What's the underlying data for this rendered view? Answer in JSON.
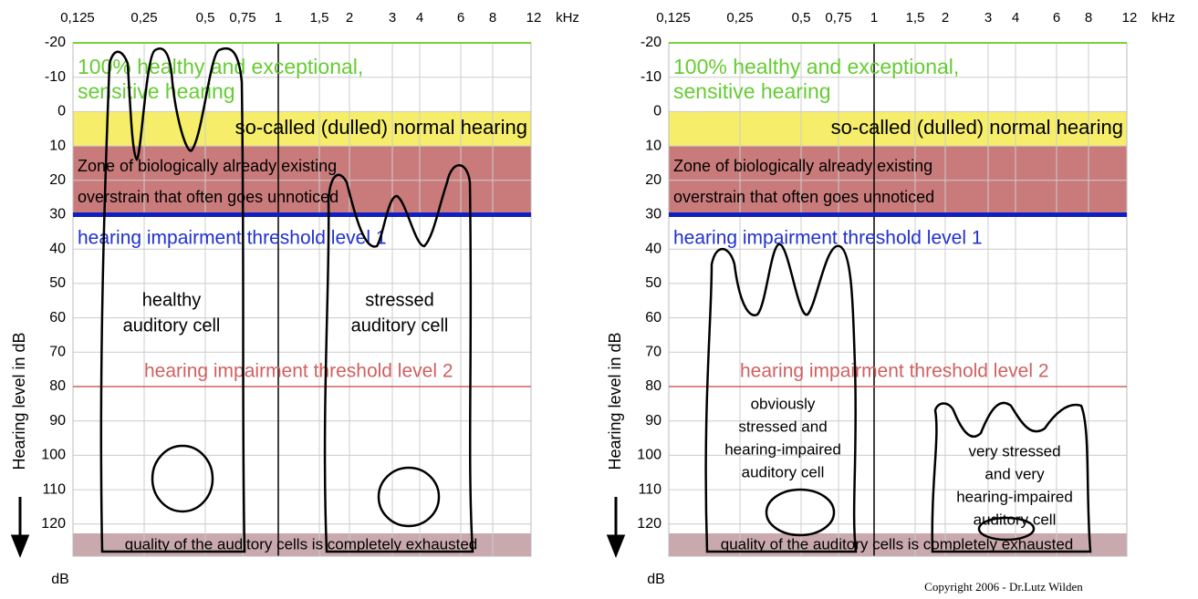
{
  "panels": [
    {
      "x_labels": [
        "0,125",
        "0,25",
        "0,5",
        "0,75",
        "1",
        "1,5",
        "2",
        "3",
        "4",
        "6",
        "8",
        "12"
      ],
      "x_unit": "kHz",
      "y_labels": [
        -20,
        -10,
        0,
        10,
        20,
        30,
        40,
        50,
        60,
        70,
        80,
        90,
        100,
        110,
        120
      ],
      "y_axis_title": "Hearing level in dB",
      "y_unit": "dB",
      "zones": {
        "healthy": [
          "100% healthy and exceptional,",
          "sensitive hearing"
        ],
        "normal": "so-called (dulled) normal hearing",
        "overstrain": [
          "Zone of biologically already existing",
          "overstrain that often goes unnoticed"
        ],
        "level1": "hearing impairment threshold level 1",
        "level2": "hearing impairment threshold level 2",
        "exhausted": "quality of the auditory cells is completely exhausted"
      },
      "cells": [
        {
          "label": [
            "healthy",
            "auditory cell"
          ]
        },
        {
          "label": [
            "stressed",
            "auditory cell"
          ]
        }
      ]
    },
    {
      "x_labels": [
        "0,125",
        "0,25",
        "0,5",
        "0,75",
        "1",
        "1,5",
        "2",
        "3",
        "4",
        "6",
        "8",
        "12"
      ],
      "x_unit": "kHz",
      "y_labels": [
        -20,
        -10,
        0,
        10,
        20,
        30,
        40,
        50,
        60,
        70,
        80,
        90,
        100,
        110,
        120
      ],
      "y_axis_title": "Hearing level in dB",
      "y_unit": "dB",
      "zones": {
        "healthy": [
          "100% healthy and exceptional,",
          "sensitive hearing"
        ],
        "normal": "so-called (dulled) normal hearing",
        "overstrain": [
          "Zone of biologically already existing",
          "overstrain that often goes unnoticed"
        ],
        "level1": "hearing impairment threshold level 1",
        "level2": "hearing impairment threshold level 2",
        "exhausted": "quality of the auditory cells is completely exhausted"
      },
      "cells": [
        {
          "label": [
            "obviously",
            "stressed and",
            "hearing-impaired",
            "auditory cell"
          ]
        },
        {
          "label": [
            "very stressed",
            "and very",
            "hearing-impaired",
            "auditory cell"
          ]
        }
      ]
    }
  ],
  "copyright": "Copyright 2006 - Dr.Lutz Wilden"
}
